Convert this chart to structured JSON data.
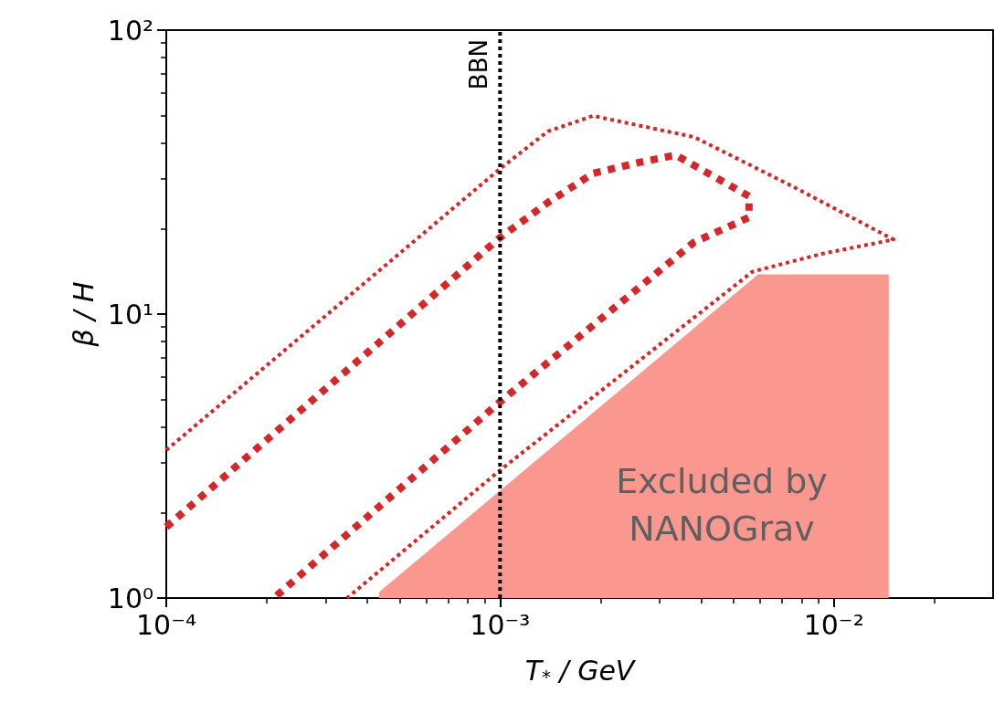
{
  "chart_data": {
    "type": "line",
    "xlabel": "T$_{*}$ / GeV",
    "ylabel": "β / H",
    "log": "xy",
    "xlim": [
      0.0001,
      0.03
    ],
    "ylim": [
      1,
      100
    ],
    "xticks": [
      {
        "value": 0.0001,
        "label": "10⁻⁴"
      },
      {
        "value": 0.001,
        "label": "10⁻³"
      },
      {
        "value": 0.01,
        "label": "10⁻²"
      }
    ],
    "yticks": [
      {
        "value": 1,
        "label": "10⁰"
      },
      {
        "value": 10,
        "label": "10¹"
      },
      {
        "value": 100,
        "label": "10²"
      }
    ],
    "grid": false,
    "marker": "none",
    "series": [
      {
        "type": "area",
        "color": "#fa9890",
        "x": [
          0.000434,
          0.00593,
          0.0146
        ],
        "values": [
          1.05,
          13.8,
          13.8
        ]
      },
      {
        "color": "#d62728",
        "line_style": "dotted",
        "x": [
          0.0001,
          0.001,
          0.00139,
          0.0019,
          0.00382,
          0.0076,
          0.0151,
          0.0092,
          0.0057,
          0.001,
          0.000348
        ],
        "values": [
          3.32,
          32.5,
          44,
          49.9,
          42,
          28,
          18.3,
          16.3,
          14.1,
          2.82,
          1
        ]
      },
      {
        "color": "#d62728",
        "line_style": "dotted",
        "x": [
          0.0001,
          0.001,
          0.00139,
          0.0019,
          0.00261,
          0.00336,
          0.00557,
          0.00557,
          0.00381,
          0.001,
          0.00021
        ],
        "values": [
          1.78,
          18.6,
          24.7,
          31.3,
          34.2,
          36.3,
          26,
          21.9,
          17.9,
          4.91,
          1
        ]
      }
    ],
    "ref_lines": [
      {
        "axis": "x",
        "value": 0.001,
        "label": "BBN",
        "color": "#000000",
        "line_style": "dotted"
      }
    ],
    "annotations": [
      "Excluded by\nNANOGrav"
    ]
  }
}
